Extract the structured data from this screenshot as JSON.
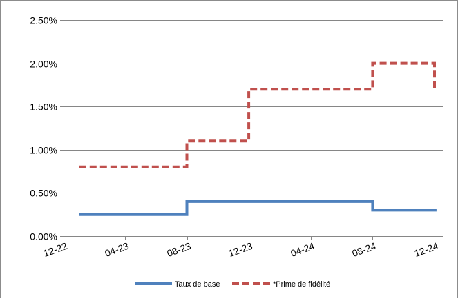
{
  "chart_data": {
    "type": "line",
    "step": true,
    "title": "",
    "xlabel": "",
    "ylabel": "",
    "x_axis": {
      "type": "date",
      "range": [
        "2022-12-01",
        "2024-12-01"
      ],
      "ticks": [
        {
          "date": "2022-12-01",
          "label": "12-22"
        },
        {
          "date": "2023-04-01",
          "label": "04-23"
        },
        {
          "date": "2023-08-01",
          "label": "08-23"
        },
        {
          "date": "2023-12-01",
          "label": "12-23"
        },
        {
          "date": "2024-04-01",
          "label": "04-24"
        },
        {
          "date": "2024-08-01",
          "label": "08-24"
        },
        {
          "date": "2024-12-01",
          "label": "12-24"
        }
      ]
    },
    "y_axis": {
      "range": [
        0,
        0.025
      ],
      "ticks": [
        {
          "value": 0.0,
          "label": "0.00%"
        },
        {
          "value": 0.005,
          "label": "0.50%"
        },
        {
          "value": 0.01,
          "label": "1.00%"
        },
        {
          "value": 0.015,
          "label": "1.50%"
        },
        {
          "value": 0.02,
          "label": "2.00%"
        },
        {
          "value": 0.025,
          "label": "2.50%"
        }
      ],
      "gridlines": true
    },
    "legend_position": "bottom",
    "series": [
      {
        "name": "Taux de base",
        "color": "#4f81bd",
        "style": "solid",
        "points": [
          {
            "date": "2023-01-01",
            "value": 0.0025
          },
          {
            "date": "2023-08-01",
            "value": 0.0025
          },
          {
            "date": "2023-08-01",
            "value": 0.004
          },
          {
            "date": "2024-08-01",
            "value": 0.004
          },
          {
            "date": "2024-08-01",
            "value": 0.003
          },
          {
            "date": "2024-12-05",
            "value": 0.003
          }
        ]
      },
      {
        "name": "*Prime de fidélité",
        "color": "#c0504d",
        "style": "dashed",
        "points": [
          {
            "date": "2023-01-01",
            "value": 0.008
          },
          {
            "date": "2023-08-01",
            "value": 0.008
          },
          {
            "date": "2023-08-01",
            "value": 0.011
          },
          {
            "date": "2023-12-01",
            "value": 0.011
          },
          {
            "date": "2023-12-01",
            "value": 0.017
          },
          {
            "date": "2024-08-01",
            "value": 0.017
          },
          {
            "date": "2024-08-01",
            "value": 0.02
          },
          {
            "date": "2024-12-01",
            "value": 0.02
          },
          {
            "date": "2024-12-01",
            "value": 0.017
          },
          {
            "date": "2024-12-05",
            "value": 0.017
          }
        ]
      }
    ]
  }
}
